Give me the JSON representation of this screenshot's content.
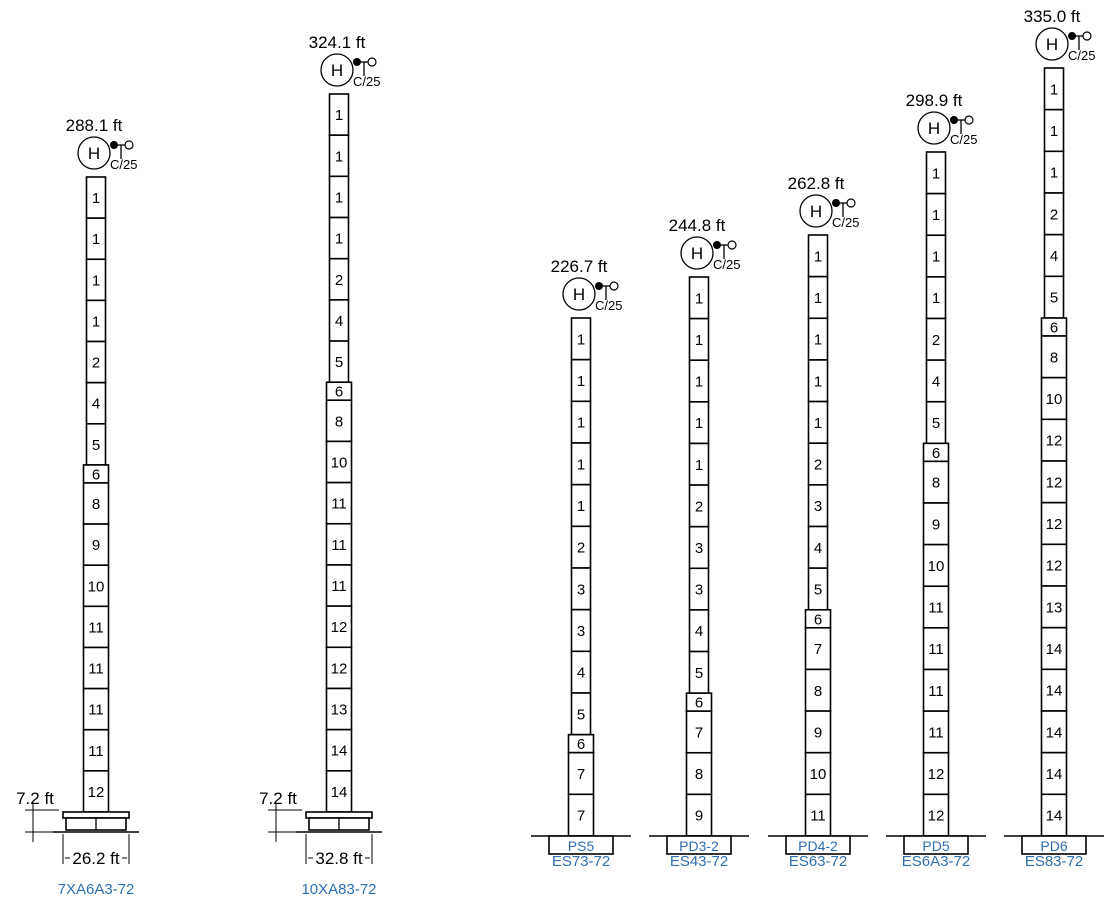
{
  "icons": {
    "hub": "hub-icon",
    "anemometer": "anemometer-icon",
    "foundation": "foundation-icon",
    "dimension": "dimension-arrow-icon"
  },
  "colors": {
    "line": "#000000",
    "label_blue": "#2f6fb0"
  },
  "hub_letter": "H",
  "turbine_class": "C/25",
  "towers": [
    {
      "id": "t1",
      "height_label": "288.1 ft",
      "code": "7XA6A3-72",
      "foundation": "",
      "lattice": true,
      "base_height_label": "7.2 ft",
      "base_width_label": "26.2 ft",
      "sections": [
        "1",
        "1",
        "1",
        "1",
        "2",
        "4",
        "5",
        "6",
        "8",
        "9",
        "10",
        "11",
        "11",
        "11",
        "11",
        "12"
      ]
    },
    {
      "id": "t2",
      "height_label": "324.1 ft",
      "code": "10XA83-72",
      "foundation": "",
      "lattice": true,
      "base_height_label": "7.2 ft",
      "base_width_label": "32.8 ft",
      "sections": [
        "1",
        "1",
        "1",
        "1",
        "2",
        "4",
        "5",
        "6",
        "8",
        "10",
        "11",
        "11",
        "11",
        "12",
        "12",
        "13",
        "14",
        "14"
      ]
    },
    {
      "id": "t3",
      "height_label": "226.7 ft",
      "code": "ES73-72",
      "foundation": "PS5",
      "lattice": false,
      "sections": [
        "1",
        "1",
        "1",
        "1",
        "1",
        "2",
        "3",
        "3",
        "4",
        "5",
        "6",
        "7",
        "7"
      ]
    },
    {
      "id": "t4",
      "height_label": "244.8 ft",
      "code": "ES43-72",
      "foundation": "PD3-2",
      "lattice": false,
      "sections": [
        "1",
        "1",
        "1",
        "1",
        "1",
        "2",
        "3",
        "3",
        "4",
        "5",
        "6",
        "7",
        "8",
        "9"
      ]
    },
    {
      "id": "t5",
      "height_label": "262.8 ft",
      "code": "ES63-72",
      "foundation": "PD4-2",
      "lattice": false,
      "sections": [
        "1",
        "1",
        "1",
        "1",
        "1",
        "2",
        "3",
        "4",
        "5",
        "6",
        "7",
        "8",
        "9",
        "10",
        "11"
      ]
    },
    {
      "id": "t6",
      "height_label": "298.9 ft",
      "code": "ES6A3-72",
      "foundation": "PD5",
      "lattice": false,
      "sections": [
        "1",
        "1",
        "1",
        "1",
        "2",
        "4",
        "5",
        "6",
        "8",
        "9",
        "10",
        "11",
        "11",
        "11",
        "11",
        "12",
        "12"
      ]
    },
    {
      "id": "t7",
      "height_label": "335.0 ft",
      "code": "ES83-72",
      "foundation": "PD6",
      "lattice": false,
      "sections": [
        "1",
        "1",
        "1",
        "2",
        "4",
        "5",
        "6",
        "8",
        "10",
        "12",
        "12",
        "12",
        "12",
        "13",
        "14",
        "14",
        "14",
        "14",
        "14"
      ]
    }
  ]
}
